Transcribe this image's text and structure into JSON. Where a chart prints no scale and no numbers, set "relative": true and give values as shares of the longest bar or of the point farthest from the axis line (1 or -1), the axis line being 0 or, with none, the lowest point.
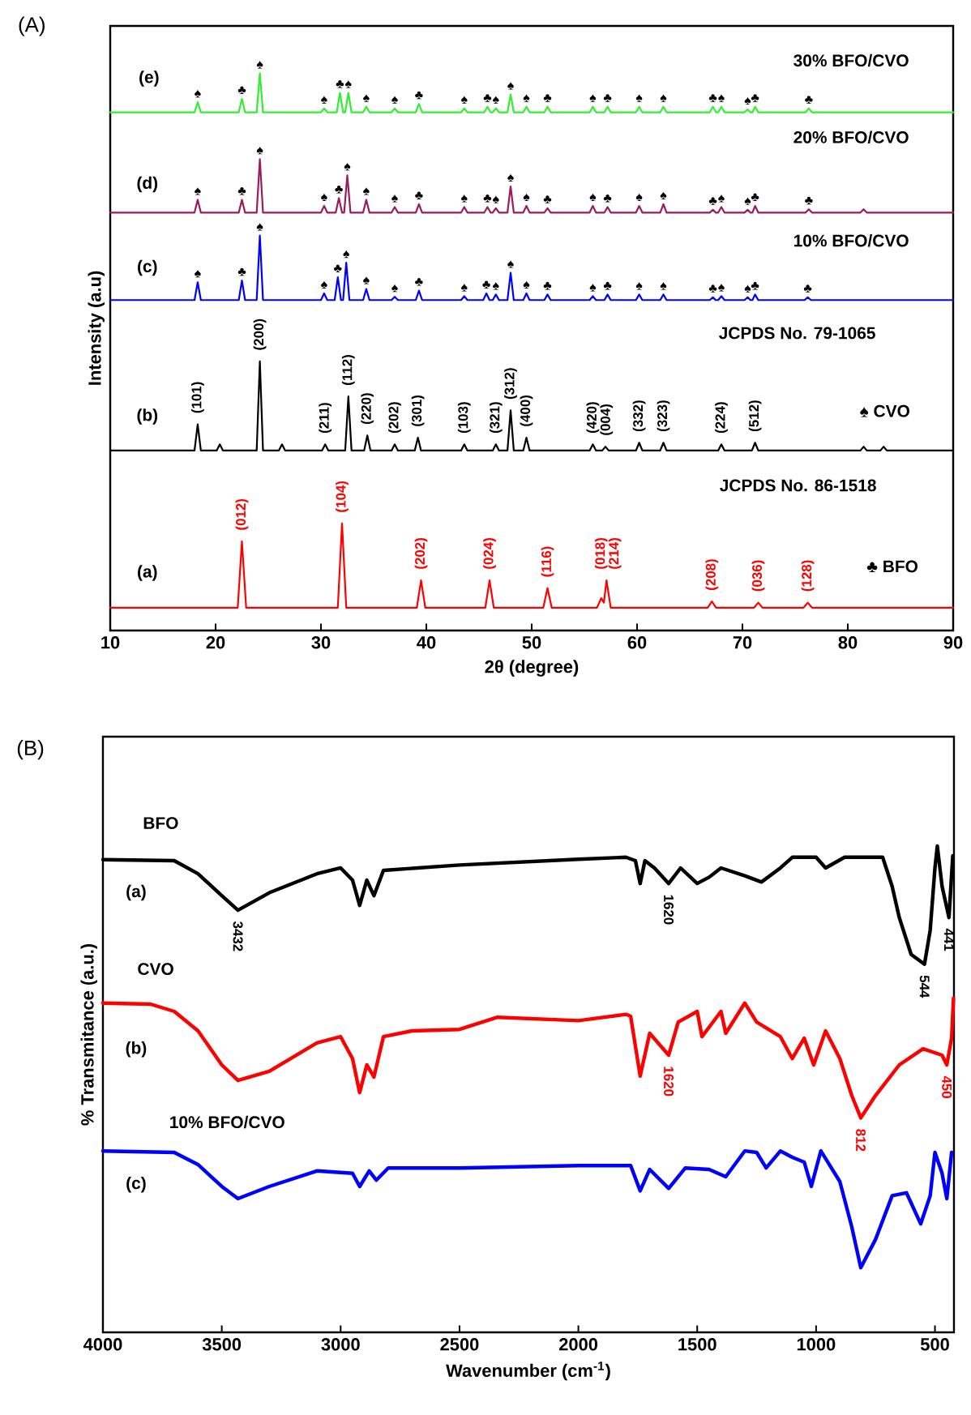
{
  "chart_data": [
    {
      "type": "line",
      "title": "(A)",
      "xlabel": "2θ (degree)",
      "ylabel": "Intensity (a.u)",
      "relative": true,
      "tick_labels": "x",
      "xlim": [
        10,
        90
      ],
      "xticks": [
        10,
        20,
        30,
        40,
        50,
        60,
        70,
        80,
        90
      ],
      "series": [
        {
          "color": "#ff0000",
          "x": [
            10,
            22.1,
            22.5,
            22.9,
            31.6,
            32,
            32.4,
            39.1,
            39.5,
            39.9,
            45.6,
            46,
            46.4,
            51.1,
            51.5,
            51.9,
            56.2,
            56.6,
            56.85,
            57.1,
            57.5,
            66.7,
            67.1,
            67.5,
            71.1,
            71.5,
            71.9,
            75.8,
            76.2,
            76.6,
            90
          ],
          "values": [
            0.041,
            0.041,
            0.16,
            0.041,
            0.041,
            0.192,
            0.041,
            0.041,
            0.09,
            0.041,
            0.041,
            0.09,
            0.041,
            0.041,
            0.076,
            0.041,
            0.041,
            0.058,
            0.05,
            0.09,
            0.041,
            0.041,
            0.052,
            0.041,
            0.041,
            0.05,
            0.041,
            0.041,
            0.05,
            0.041,
            0.041
          ]
        },
        {
          "color": "#000000",
          "x": [
            10,
            18.0,
            18.3,
            18.6,
            20.1,
            20.4,
            20.7,
            23.9,
            24.2,
            24.5,
            26.0,
            26.3,
            26.6,
            30.1,
            30.4,
            30.7,
            32.3,
            32.6,
            32.9,
            34.1,
            34.4,
            34.7,
            36.7,
            37,
            37.3,
            38.9,
            39.2,
            39.5,
            43.3,
            43.6,
            43.9,
            46.3,
            46.6,
            46.9,
            47.7,
            48,
            48.3,
            49.2,
            49.5,
            49.8,
            55.5,
            55.8,
            56.1,
            56.7,
            57,
            57.3,
            59.9,
            60.2,
            60.5,
            62.2,
            62.5,
            62.8,
            67.7,
            68,
            68.3,
            70.9,
            71.2,
            71.5,
            81.2,
            81.5,
            81.8,
            83.1,
            83.4,
            83.7,
            90
          ],
          "values": [
            0.323,
            0.323,
            0.37,
            0.323,
            0.323,
            0.334,
            0.323,
            0.323,
            0.483,
            0.323,
            0.323,
            0.334,
            0.323,
            0.323,
            0.334,
            0.323,
            0.323,
            0.42,
            0.323,
            0.323,
            0.35,
            0.323,
            0.323,
            0.334,
            0.323,
            0.323,
            0.346,
            0.323,
            0.323,
            0.334,
            0.323,
            0.323,
            0.334,
            0.323,
            0.323,
            0.395,
            0.323,
            0.323,
            0.346,
            0.323,
            0.323,
            0.334,
            0.323,
            0.323,
            0.33,
            0.323,
            0.323,
            0.337,
            0.323,
            0.323,
            0.337,
            0.323,
            0.323,
            0.334,
            0.323,
            0.323,
            0.337,
            0.323,
            0.323,
            0.33,
            0.323,
            0.323,
            0.33,
            0.323,
            0.323
          ]
        },
        {
          "color": "#0000ff",
          "x": [
            10,
            18.0,
            18.3,
            18.6,
            22.2,
            22.5,
            22.8,
            23.9,
            24.2,
            24.5,
            30.0,
            30.3,
            30.6,
            31.3,
            31.6,
            31.9,
            32.1,
            32.4,
            32.7,
            34.0,
            34.3,
            34.6,
            36.7,
            37,
            37.3,
            39.0,
            39.3,
            39.6,
            43.3,
            43.6,
            43.9,
            45.4,
            45.7,
            46.0,
            46.3,
            46.6,
            46.9,
            47.7,
            48,
            48.3,
            49.2,
            49.5,
            49.8,
            51.2,
            51.5,
            51.8,
            55.5,
            55.8,
            56.1,
            56.9,
            57.2,
            57.5,
            59.9,
            60.2,
            60.5,
            62.2,
            62.5,
            62.8,
            66.9,
            67.2,
            67.45,
            67.7,
            68,
            68.3,
            70.2,
            70.5,
            70.75,
            70.95,
            71.2,
            71.5,
            75.9,
            76.2,
            76.5,
            90
          ],
          "values": [
            0.593,
            0.593,
            0.625,
            0.593,
            0.593,
            0.628,
            0.593,
            0.593,
            0.709,
            0.593,
            0.593,
            0.605,
            0.593,
            0.593,
            0.634,
            0.593,
            0.593,
            0.66,
            0.593,
            0.593,
            0.613,
            0.593,
            0.593,
            0.599,
            0.593,
            0.593,
            0.61,
            0.593,
            0.593,
            0.6,
            0.593,
            0.593,
            0.605,
            0.593,
            0.593,
            0.603,
            0.593,
            0.593,
            0.642,
            0.593,
            0.593,
            0.605,
            0.593,
            0.593,
            0.603,
            0.593,
            0.593,
            0.6,
            0.593,
            0.593,
            0.603,
            0.593,
            0.593,
            0.603,
            0.593,
            0.593,
            0.603,
            0.593,
            0.593,
            0.598,
            0.593,
            0.593,
            0.6,
            0.593,
            0.593,
            0.598,
            0.593,
            0.593,
            0.603,
            0.593,
            0.593,
            0.598,
            0.593,
            0.593
          ]
        },
        {
          "color": "#9b1b5b",
          "x": [
            10,
            18.0,
            18.3,
            18.6,
            22.2,
            22.5,
            22.8,
            23.9,
            24.2,
            24.5,
            30.0,
            30.3,
            30.6,
            31.4,
            31.7,
            32.0,
            32.2,
            32.5,
            32.8,
            34.0,
            34.3,
            34.6,
            36.7,
            37,
            37.3,
            39.0,
            39.3,
            39.6,
            43.3,
            43.6,
            43.9,
            45.5,
            45.8,
            46.1,
            46.3,
            46.6,
            46.9,
            47.7,
            48,
            48.3,
            49.2,
            49.5,
            49.8,
            51.2,
            51.5,
            51.8,
            55.5,
            55.8,
            56.1,
            56.9,
            57.2,
            57.5,
            59.9,
            60.2,
            60.5,
            62.2,
            62.5,
            62.8,
            66.9,
            67.2,
            67.45,
            67.7,
            68,
            68.3,
            70.2,
            70.5,
            70.75,
            70.95,
            71.2,
            71.5,
            76.0,
            76.3,
            76.6,
            81.2,
            81.5,
            81.8,
            90
          ],
          "values": [
            0.75,
            0.75,
            0.773,
            0.75,
            0.75,
            0.773,
            0.75,
            0.75,
            0.846,
            0.75,
            0.75,
            0.762,
            0.75,
            0.75,
            0.776,
            0.75,
            0.75,
            0.817,
            0.75,
            0.75,
            0.773,
            0.75,
            0.75,
            0.76,
            0.75,
            0.75,
            0.765,
            0.75,
            0.75,
            0.76,
            0.75,
            0.75,
            0.76,
            0.75,
            0.75,
            0.758,
            0.75,
            0.75,
            0.797,
            0.75,
            0.75,
            0.762,
            0.75,
            0.75,
            0.758,
            0.75,
            0.75,
            0.762,
            0.75,
            0.75,
            0.76,
            0.75,
            0.75,
            0.762,
            0.75,
            0.75,
            0.765,
            0.75,
            0.75,
            0.755,
            0.75,
            0.75,
            0.76,
            0.75,
            0.75,
            0.755,
            0.75,
            0.75,
            0.762,
            0.75,
            0.75,
            0.756,
            0.75,
            0.75,
            0.756,
            0.75,
            0.75
          ]
        },
        {
          "color": "#33ee33",
          "x": [
            10,
            18.0,
            18.3,
            18.6,
            22.2,
            22.5,
            22.8,
            23.9,
            24.2,
            24.5,
            30.0,
            30.3,
            30.6,
            31.5,
            31.8,
            32.1,
            32.3,
            32.6,
            32.9,
            34.0,
            34.3,
            34.6,
            36.7,
            37,
            37.3,
            39.0,
            39.3,
            39.6,
            43.3,
            43.6,
            43.9,
            45.5,
            45.8,
            46.1,
            46.3,
            46.6,
            46.9,
            47.7,
            48,
            48.3,
            49.2,
            49.5,
            49.8,
            51.2,
            51.5,
            51.8,
            55.5,
            55.8,
            56.1,
            56.9,
            57.2,
            57.5,
            59.9,
            60.2,
            60.5,
            62.2,
            62.5,
            62.8,
            66.9,
            67.2,
            67.5,
            67.7,
            68,
            68.3,
            70.2,
            70.5,
            70.75,
            70.95,
            71.2,
            71.5,
            76.0,
            76.3,
            76.6,
            90
          ],
          "values": [
            0.93,
            0.93,
            0.948,
            0.93,
            0.93,
            0.954,
            0.93,
            0.93,
            1.0,
            0.93,
            0.93,
            0.937,
            0.93,
            0.93,
            0.965,
            0.93,
            0.93,
            0.965,
            0.93,
            0.93,
            0.94,
            0.93,
            0.93,
            0.937,
            0.93,
            0.93,
            0.945,
            0.93,
            0.93,
            0.937,
            0.93,
            0.93,
            0.94,
            0.93,
            0.93,
            0.937,
            0.93,
            0.93,
            0.962,
            0.93,
            0.93,
            0.94,
            0.93,
            0.93,
            0.94,
            0.93,
            0.93,
            0.94,
            0.93,
            0.93,
            0.94,
            0.93,
            0.93,
            0.94,
            0.93,
            0.93,
            0.94,
            0.93,
            0.93,
            0.94,
            0.93,
            0.93,
            0.94,
            0.93,
            0.93,
            0.935,
            0.93,
            0.93,
            0.94,
            0.93,
            0.93,
            0.937,
            0.93,
            0.93
          ]
        }
      ],
      "annotations": [
        "(e)",
        "(d)",
        "(c)",
        "(b)",
        "(a)",
        "30% BFO/CVO",
        "20% BFO/CVO",
        "10% BFO/CVO",
        "JCPDS No. 79-1065",
        "JCPDS No. 86-1518",
        "♠ CVO",
        "♣ BFO",
        {
          "text": "(012)",
          "x": 22.5,
          "y": 0.16
        },
        {
          "text": "(104)",
          "x": 32,
          "y": 0.192
        },
        {
          "text": "(202)",
          "x": 39.5,
          "y": 0.09
        },
        {
          "text": "(024)",
          "x": 46,
          "y": 0.09
        },
        {
          "text": "(116)",
          "x": 51.5,
          "y": 0.076
        },
        {
          "text": "(018)",
          "x": 56.6,
          "y": 0.058
        },
        {
          "text": "(214)",
          "x": 57.1,
          "y": 0.09
        },
        {
          "text": "(208)",
          "x": 67.1,
          "y": 0.052
        },
        {
          "text": "(036)",
          "x": 71.5,
          "y": 0.05
        },
        {
          "text": "(128)",
          "x": 76.2,
          "y": 0.05
        },
        {
          "text": "(101)",
          "x": 18.3,
          "y": 0.37
        },
        {
          "text": "(200)",
          "x": 24.2,
          "y": 0.483
        },
        {
          "text": "(211)",
          "x": 30.4,
          "y": 0.334
        },
        {
          "text": "(112)",
          "x": 32.6,
          "y": 0.42
        },
        {
          "text": "(220)",
          "x": 34.4,
          "y": 0.35
        },
        {
          "text": "(202)",
          "x": 37,
          "y": 0.334
        },
        {
          "text": "(301)",
          "x": 39.2,
          "y": 0.346
        },
        {
          "text": "(103)",
          "x": 43.6,
          "y": 0.334
        },
        {
          "text": "(321)",
          "x": 46.6,
          "y": 0.334
        },
        {
          "text": "(312)",
          "x": 48,
          "y": 0.395
        },
        {
          "text": "(400)",
          "x": 49.5,
          "y": 0.346
        },
        {
          "text": "(420)",
          "x": 55.8,
          "y": 0.334
        },
        {
          "text": "(004)",
          "x": 57,
          "y": 0.33
        },
        {
          "text": "(332)",
          "x": 60.2,
          "y": 0.337
        },
        {
          "text": "(323)",
          "x": 62.5,
          "y": 0.337
        },
        {
          "text": "(224)",
          "x": 68,
          "y": 0.334
        },
        {
          "text": "(512)",
          "x": 71.2,
          "y": 0.337
        },
        {
          "text": "♠",
          "x": 18.3,
          "y": 0.948
        },
        {
          "text": "♣",
          "x": 22.5,
          "y": 0.954
        },
        {
          "text": "♠",
          "x": 24.2,
          "y": 1.0
        },
        {
          "text": "♠",
          "x": 30.3,
          "y": 0.937
        },
        {
          "text": "♣",
          "x": 31.8,
          "y": 0.965
        },
        {
          "text": "♠",
          "x": 32.6,
          "y": 0.965
        },
        {
          "text": "♠",
          "x": 34.3,
          "y": 0.94
        },
        {
          "text": "♠",
          "x": 37,
          "y": 0.937
        },
        {
          "text": "♣",
          "x": 39.3,
          "y": 0.945
        },
        {
          "text": "♠",
          "x": 43.6,
          "y": 0.937
        },
        {
          "text": "♣",
          "x": 45.8,
          "y": 0.94
        },
        {
          "text": "♠",
          "x": 46.6,
          "y": 0.937
        },
        {
          "text": "♠",
          "x": 48,
          "y": 0.962
        },
        {
          "text": "♠",
          "x": 49.5,
          "y": 0.94
        },
        {
          "text": "♣",
          "x": 51.5,
          "y": 0.94
        },
        {
          "text": "♠",
          "x": 55.8,
          "y": 0.94
        },
        {
          "text": "♣",
          "x": 57.2,
          "y": 0.94
        },
        {
          "text": "♠",
          "x": 60.2,
          "y": 0.94
        },
        {
          "text": "♠",
          "x": 62.5,
          "y": 0.94
        },
        {
          "text": "♣",
          "x": 67.2,
          "y": 0.94
        },
        {
          "text": "♠",
          "x": 68,
          "y": 0.94
        },
        {
          "text": "♠",
          "x": 70.5,
          "y": 0.935
        },
        {
          "text": "♣",
          "x": 71.2,
          "y": 0.94
        },
        {
          "text": "♣",
          "x": 76.3,
          "y": 0.937
        },
        {
          "text": "♠",
          "x": 18.3,
          "y": 0.773
        },
        {
          "text": "♣",
          "x": 22.5,
          "y": 0.773
        },
        {
          "text": "♠",
          "x": 24.2,
          "y": 0.846
        },
        {
          "text": "♠",
          "x": 30.3,
          "y": 0.762
        },
        {
          "text": "♣",
          "x": 31.7,
          "y": 0.776
        },
        {
          "text": "♠",
          "x": 32.5,
          "y": 0.817
        },
        {
          "text": "♠",
          "x": 34.3,
          "y": 0.773
        },
        {
          "text": "♠",
          "x": 37,
          "y": 0.76
        },
        {
          "text": "♣",
          "x": 39.3,
          "y": 0.765
        },
        {
          "text": "♠",
          "x": 43.6,
          "y": 0.76
        },
        {
          "text": "♣",
          "x": 45.8,
          "y": 0.76
        },
        {
          "text": "♠",
          "x": 46.6,
          "y": 0.758
        },
        {
          "text": "♠",
          "x": 48,
          "y": 0.797
        },
        {
          "text": "♠",
          "x": 49.5,
          "y": 0.762
        },
        {
          "text": "♣",
          "x": 51.5,
          "y": 0.758
        },
        {
          "text": "♠",
          "x": 55.8,
          "y": 0.762
        },
        {
          "text": "♣",
          "x": 57.2,
          "y": 0.76
        },
        {
          "text": "♠",
          "x": 60.2,
          "y": 0.762
        },
        {
          "text": "♠",
          "x": 62.5,
          "y": 0.765
        },
        {
          "text": "♣",
          "x": 67.2,
          "y": 0.755
        },
        {
          "text": "♠",
          "x": 68,
          "y": 0.76
        },
        {
          "text": "♠",
          "x": 70.5,
          "y": 0.755
        },
        {
          "text": "♣",
          "x": 71.2,
          "y": 0.762
        },
        {
          "text": "♣",
          "x": 76.3,
          "y": 0.756
        },
        {
          "text": "♠",
          "x": 18.3,
          "y": 0.625
        },
        {
          "text": "♣",
          "x": 22.5,
          "y": 0.628
        },
        {
          "text": "♠",
          "x": 24.2,
          "y": 0.709
        },
        {
          "text": "♠",
          "x": 30.3,
          "y": 0.605
        },
        {
          "text": "♣",
          "x": 31.6,
          "y": 0.634
        },
        {
          "text": "♠",
          "x": 32.4,
          "y": 0.66
        },
        {
          "text": "♠",
          "x": 34.3,
          "y": 0.613
        },
        {
          "text": "♠",
          "x": 37,
          "y": 0.599
        },
        {
          "text": "♣",
          "x": 39.3,
          "y": 0.61
        },
        {
          "text": "♠",
          "x": 43.6,
          "y": 0.6
        },
        {
          "text": "♣",
          "x": 45.7,
          "y": 0.605
        },
        {
          "text": "♠",
          "x": 46.6,
          "y": 0.603
        },
        {
          "text": "♠",
          "x": 48,
          "y": 0.642
        },
        {
          "text": "♠",
          "x": 49.5,
          "y": 0.605
        },
        {
          "text": "♣",
          "x": 51.5,
          "y": 0.603
        },
        {
          "text": "♠",
          "x": 55.8,
          "y": 0.6
        },
        {
          "text": "♣",
          "x": 57.2,
          "y": 0.603
        },
        {
          "text": "♠",
          "x": 60.2,
          "y": 0.603
        },
        {
          "text": "♠",
          "x": 62.5,
          "y": 0.603
        },
        {
          "text": "♣",
          "x": 67.2,
          "y": 0.598
        },
        {
          "text": "♠",
          "x": 68,
          "y": 0.6
        },
        {
          "text": "♠",
          "x": 70.5,
          "y": 0.598
        },
        {
          "text": "♣",
          "x": 71.2,
          "y": 0.603
        },
        {
          "text": "♣",
          "x": 76.2,
          "y": 0.598
        }
      ]
    },
    {
      "type": "line",
      "title": "(B)",
      "xlabel": "Wavenumber (cm$^{-1}$)",
      "ylabel": "% Transmitance (a.u.)",
      "relative": true,
      "tick_labels": "x",
      "xlim": [
        4000,
        420
      ],
      "xticks": [
        4000,
        3500,
        3000,
        2500,
        2000,
        1500,
        1000,
        500
      ],
      "series": [
        {
          "color": "#000000",
          "x": [
            4000,
            3700,
            3600,
            3500,
            3432,
            3300,
            3100,
            3000,
            2950,
            2920,
            2890,
            2860,
            2820,
            2500,
            2000,
            1800,
            1760,
            1740,
            1720,
            1680,
            1620,
            1570,
            1500,
            1450,
            1400,
            1300,
            1230,
            1150,
            1100,
            1000,
            960,
            880,
            720,
            680,
            650,
            600,
            544,
            520,
            500,
            490,
            470,
            441,
            425
          ],
          "values": [
            0.972,
            0.97,
            0.943,
            0.898,
            0.868,
            0.904,
            0.943,
            0.955,
            0.93,
            0.878,
            0.93,
            0.898,
            0.95,
            0.961,
            0.973,
            0.977,
            0.97,
            0.923,
            0.97,
            0.955,
            0.923,
            0.955,
            0.923,
            0.936,
            0.955,
            0.939,
            0.926,
            0.955,
            0.977,
            0.977,
            0.955,
            0.977,
            0.977,
            0.917,
            0.853,
            0.777,
            0.757,
            0.827,
            0.955,
            1.0,
            0.917,
            0.853,
            0.98
          ]
        },
        {
          "color": "#ff0000",
          "x": [
            4000,
            3800,
            3700,
            3600,
            3500,
            3432,
            3300,
            3100,
            3000,
            2950,
            2920,
            2890,
            2860,
            2820,
            2700,
            2500,
            2340,
            2000,
            1800,
            1780,
            1740,
            1700,
            1620,
            1580,
            1500,
            1480,
            1400,
            1380,
            1300,
            1250,
            1150,
            1100,
            1050,
            1010,
            960,
            900,
            850,
            812,
            750,
            650,
            550,
            470,
            450,
            430,
            422
          ],
          "values": [
            0.677,
            0.675,
            0.66,
            0.62,
            0.55,
            0.518,
            0.537,
            0.595,
            0.608,
            0.563,
            0.493,
            0.55,
            0.525,
            0.608,
            0.62,
            0.623,
            0.648,
            0.641,
            0.654,
            0.65,
            0.527,
            0.615,
            0.57,
            0.638,
            0.66,
            0.608,
            0.66,
            0.615,
            0.677,
            0.638,
            0.608,
            0.563,
            0.605,
            0.55,
            0.62,
            0.563,
            0.487,
            0.441,
            0.487,
            0.55,
            0.583,
            0.57,
            0.55,
            0.605,
            0.687
          ]
        },
        {
          "color": "#0000ff",
          "x": [
            4000,
            3700,
            3600,
            3500,
            3432,
            3300,
            3100,
            2950,
            2920,
            2880,
            2850,
            2800,
            2500,
            2000,
            1780,
            1740,
            1700,
            1620,
            1550,
            1450,
            1380,
            1300,
            1250,
            1210,
            1150,
            1100,
            1050,
            1020,
            980,
            900,
            850,
            812,
            750,
            680,
            620,
            560,
            520,
            500,
            470,
            450,
            430
          ],
          "values": [
            0.373,
            0.37,
            0.345,
            0.3,
            0.275,
            0.3,
            0.332,
            0.327,
            0.3,
            0.332,
            0.313,
            0.338,
            0.338,
            0.343,
            0.343,
            0.291,
            0.335,
            0.296,
            0.338,
            0.335,
            0.32,
            0.373,
            0.37,
            0.338,
            0.373,
            0.36,
            0.35,
            0.3,
            0.373,
            0.31,
            0.217,
            0.133,
            0.191,
            0.281,
            0.287,
            0.223,
            0.281,
            0.37,
            0.327,
            0.275,
            0.37
          ]
        }
      ],
      "annotations": [
        "(a)",
        "(b)",
        "(c)",
        "BFO",
        "CVO",
        "10% BFO/CVO",
        {
          "text": "3432",
          "x": 3432,
          "y": 0.868
        },
        {
          "text": "1620",
          "x": 1620,
          "y": 0.923
        },
        {
          "text": "544",
          "x": 544,
          "y": 0.757
        },
        {
          "text": "441",
          "x": 441,
          "y": 0.853
        },
        {
          "text": "1620",
          "x": 1620,
          "y": 0.57
        },
        {
          "text": "812",
          "x": 812,
          "y": 0.441
        },
        {
          "text": "450",
          "x": 450,
          "y": 0.55
        }
      ]
    }
  ]
}
